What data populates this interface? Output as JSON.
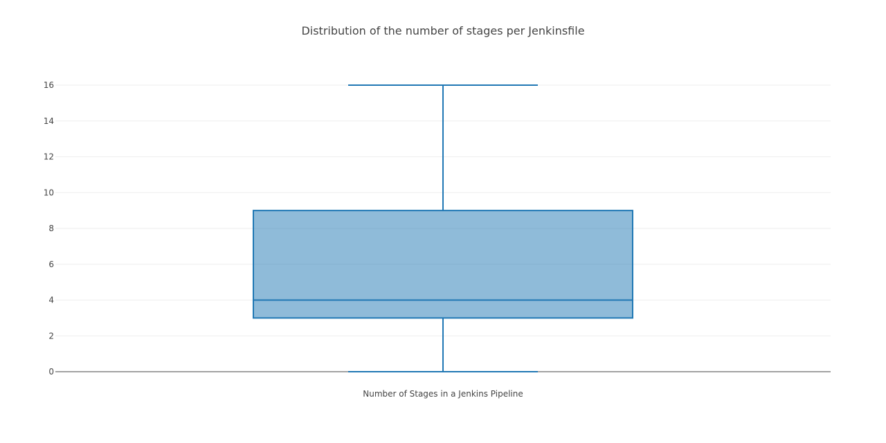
{
  "chart_data": {
    "type": "box",
    "title": "Distribution of the number of stages per Jenkinsfile",
    "xlabel": "",
    "ylabel": "",
    "categories": [
      "Number of Stages in a Jenkins Pipeline"
    ],
    "box": {
      "min": 0,
      "q1": 3,
      "median": 4,
      "q3": 9,
      "max": 16
    },
    "ylim": [
      0,
      16
    ],
    "yticks": [
      0,
      2,
      4,
      6,
      8,
      10,
      12,
      14,
      16
    ],
    "grid": true,
    "legend": "none",
    "colors": {
      "box_fill": "#1f77b4",
      "box_line": "#1f77b4",
      "grid": "#eeeeee",
      "zeroline": "#444444",
      "text": "#444444"
    }
  }
}
